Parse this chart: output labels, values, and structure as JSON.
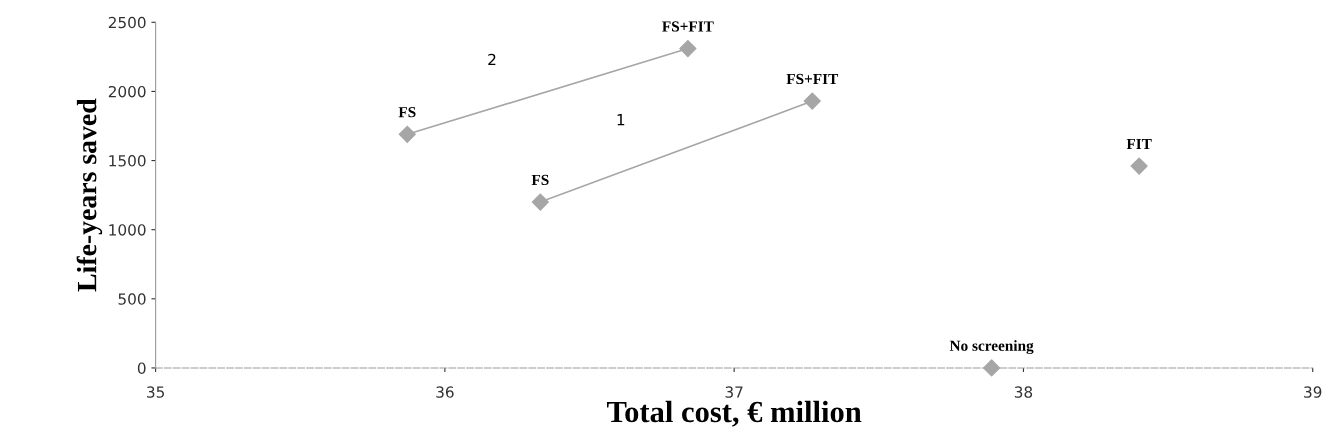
{
  "chart_data": {
    "type": "scatter",
    "xlabel": "Total cost, € million",
    "ylabel": "Life-years saved",
    "xlim": [
      35,
      39
    ],
    "xticks": [
      35,
      36,
      37,
      38,
      39
    ],
    "ylim": [
      0,
      2500
    ],
    "yticks": [
      0,
      500,
      1000,
      1500,
      2000,
      2500
    ],
    "grid": false,
    "legend": false,
    "marker": "diamond",
    "series": [
      {
        "type": "line",
        "color": "#a6a6a6",
        "x": [
          35.87,
          36.84
        ],
        "values": [
          1690,
          2310
        ]
      },
      {
        "type": "line",
        "color": "#a6a6a6",
        "x": [
          36.33,
          37.27
        ],
        "values": [
          1200,
          1930
        ]
      },
      {
        "color": "#a6a6a6",
        "x": [
          38.4,
          37.89
        ],
        "values": [
          1460,
          0
        ]
      }
    ],
    "annotations": [
      {
        "text": "FS",
        "x": 35.87,
        "y": 1690
      },
      {
        "text": "FS+FIT",
        "x": 36.84,
        "y": 2310
      },
      {
        "text": "FS",
        "x": 36.33,
        "y": 1200
      },
      {
        "text": "FS+FIT",
        "x": 37.27,
        "y": 1930
      },
      {
        "text": "FIT",
        "x": 38.4,
        "y": 1460
      },
      {
        "text": "No screening",
        "x": 37.89,
        "y": 0
      },
      "2",
      "1"
    ]
  }
}
